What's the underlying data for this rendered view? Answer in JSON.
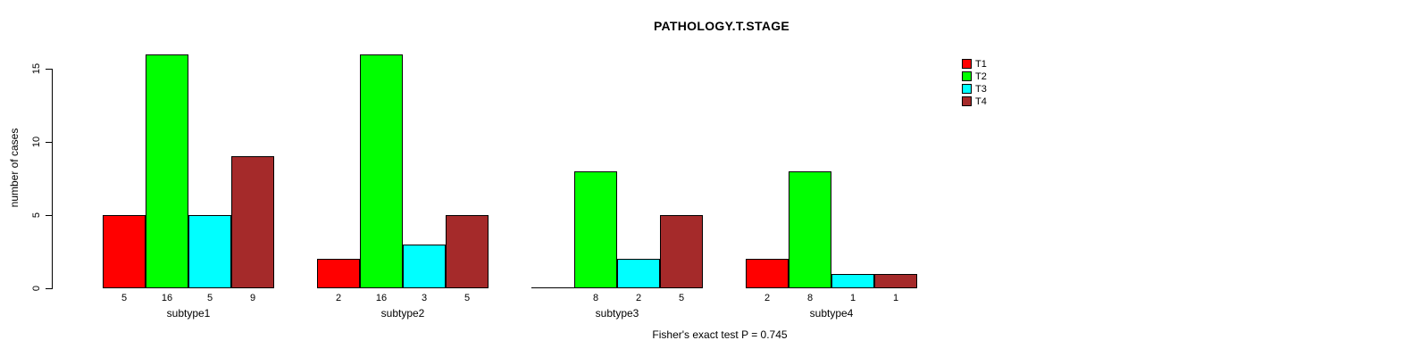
{
  "title": "PATHOLOGY.T.STAGE",
  "chart_data": {
    "type": "bar",
    "title": "PATHOLOGY.T.STAGE",
    "xlabel": "",
    "ylabel": "number of cases",
    "categories": [
      "subtype1",
      "subtype2",
      "subtype3",
      "subtype4"
    ],
    "series": [
      {
        "name": "T1",
        "color": "#ff0000",
        "values": [
          5,
          2,
          0,
          2
        ]
      },
      {
        "name": "T2",
        "color": "#00ff00",
        "values": [
          16,
          16,
          8,
          8
        ]
      },
      {
        "name": "T3",
        "color": "#00ffff",
        "values": [
          5,
          3,
          2,
          1
        ]
      },
      {
        "name": "T4",
        "color": "#a52a2a",
        "values": [
          9,
          5,
          5,
          1
        ]
      }
    ],
    "bar_labels": [
      [
        "5",
        "16",
        "5",
        "9"
      ],
      [
        "2",
        "16",
        "3",
        "5"
      ],
      [
        "",
        "8",
        "2",
        "5"
      ],
      [
        "2",
        "8",
        "1",
        "1"
      ]
    ],
    "y_ticks": [
      0,
      5,
      10,
      15
    ],
    "ylim": [
      0,
      16
    ],
    "grid": false,
    "legend_position": "top-right",
    "annotation": "Fisher's exact test P = 0.745"
  }
}
